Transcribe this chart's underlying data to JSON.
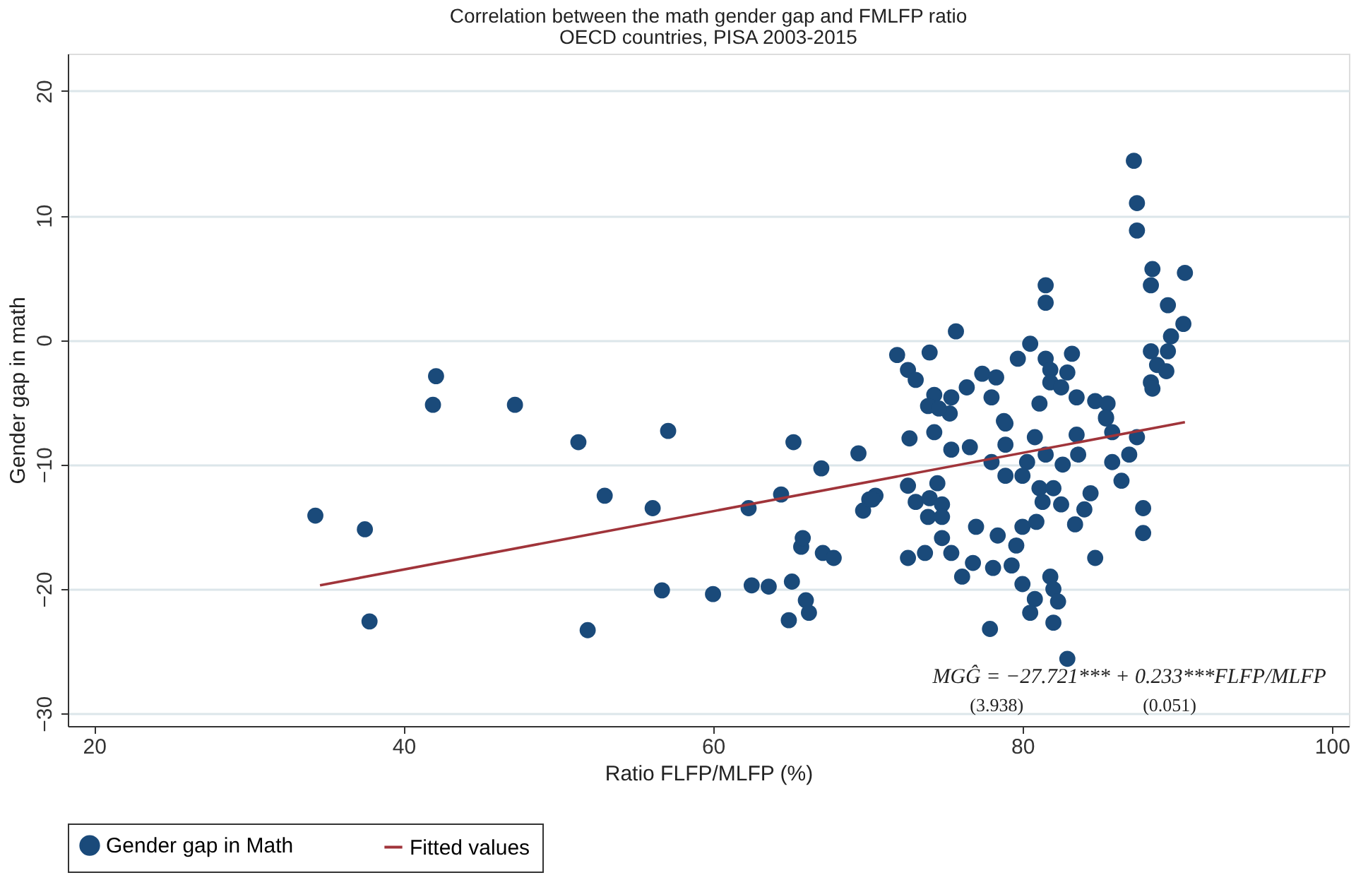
{
  "chart_data": {
    "type": "scatter",
    "title": "Correlation between the math gender gap and FMLFP ratio",
    "subtitle": "OECD countries, PISA 2003-2015",
    "xlabel": "Ratio FLFP/MLFP (%)",
    "ylabel": "Gender gap in math",
    "xlim": [
      18.3,
      101.1
    ],
    "xticks": [
      20,
      40,
      60,
      80,
      100
    ],
    "ylim": [
      -31,
      23
    ],
    "yticks": [
      -30,
      -20,
      -10,
      0,
      10,
      20
    ],
    "grid": "y",
    "legend": "bottom",
    "marker": "circle",
    "series": [
      {
        "name": "Gender gap in Math",
        "color": "#1a4a7a",
        "x": [
          34.3,
          37.5,
          37.8,
          42.1,
          41.9,
          47.2,
          51.3,
          51.9,
          53.0,
          56.1,
          57.1,
          56.7,
          60.0,
          62.3,
          62.5,
          63.6,
          64.4,
          65.2,
          64.9,
          65.1,
          65.7,
          66.0,
          66.2,
          67.0,
          67.1,
          67.8,
          69.4,
          69.7,
          70.1,
          70.5,
          65.8,
          87.2,
          87.4,
          87.4,
          88.4,
          88.3,
          90.5,
          89.4,
          90.4,
          89.6,
          88.3,
          89.4,
          88.7,
          89.3,
          88.3,
          88.4,
          81.5,
          81.5,
          75.7,
          71.9,
          74.0,
          72.6,
          73.1,
          80.5,
          79.7,
          83.2,
          81.5,
          81.8,
          82.9,
          77.4,
          78.3,
          76.4,
          81.8,
          82.5,
          74.3,
          75.4,
          78.0,
          83.5,
          84.7,
          85.5,
          73.9,
          81.1,
          75.3,
          78.8,
          85.4,
          74.6,
          72.7,
          74.3,
          75.4,
          76.6,
          78.9,
          78.9,
          80.8,
          83.5,
          85.4,
          85.8,
          87.4,
          86.9,
          85.8,
          78.0,
          80.3,
          81.5,
          82.6,
          83.6,
          78.9,
          80.0,
          86.4,
          72.6,
          74.5,
          70.3,
          73.1,
          74.0,
          74.8,
          81.1,
          82.0,
          84.4,
          81.3,
          82.5,
          84.0,
          73.9,
          74.8,
          87.8,
          83.4,
          77.0,
          80.0,
          80.9,
          78.4,
          87.8,
          74.8,
          79.6,
          75.4,
          73.7,
          72.6,
          84.7,
          76.8,
          78.1,
          79.3,
          76.1,
          80.0,
          81.8,
          82.0,
          80.8,
          82.3,
          80.5,
          82.0,
          77.9,
          82.9
        ],
        "values": [
          -14.1,
          -15.2,
          -22.6,
          -2.9,
          -5.2,
          -5.2,
          -8.2,
          -23.3,
          -12.5,
          -13.5,
          -7.3,
          -20.1,
          -20.4,
          -13.5,
          -19.7,
          -19.8,
          -12.4,
          -8.2,
          -22.5,
          -19.4,
          -16.6,
          -20.9,
          -21.9,
          -10.3,
          -17.1,
          -17.5,
          -9.1,
          -13.7,
          -12.8,
          -12.5,
          -15.9,
          14.4,
          11.0,
          8.8,
          5.7,
          4.4,
          5.4,
          2.8,
          1.3,
          0.3,
          -0.9,
          -0.9,
          -2.0,
          -2.5,
          -3.4,
          -3.9,
          4.4,
          3.0,
          0.7,
          -1.2,
          -1.0,
          -2.4,
          -3.2,
          -0.3,
          -1.5,
          -1.1,
          -1.5,
          -2.4,
          -2.6,
          -2.7,
          -3.0,
          -3.8,
          -3.4,
          -3.8,
          -4.4,
          -4.6,
          -4.6,
          -4.6,
          -4.9,
          -5.1,
          -5.3,
          -5.1,
          -5.9,
          -6.5,
          -6.2,
          -5.5,
          -7.9,
          -7.4,
          -8.8,
          -8.6,
          -6.7,
          -8.4,
          -7.8,
          -7.6,
          -6.3,
          -7.4,
          -7.8,
          -9.2,
          -9.8,
          -9.8,
          -9.8,
          -9.2,
          -10.0,
          -9.2,
          -10.9,
          -10.9,
          -11.3,
          -11.7,
          -11.5,
          -12.8,
          -13.0,
          -12.7,
          -13.2,
          -11.9,
          -11.9,
          -12.3,
          -13.0,
          -13.2,
          -13.6,
          -14.2,
          -14.2,
          -13.5,
          -14.8,
          -15.0,
          -15.0,
          -14.6,
          -15.7,
          -15.5,
          -15.9,
          -16.5,
          -17.1,
          -17.1,
          -17.5,
          -17.5,
          -17.9,
          -18.3,
          -18.1,
          -19.0,
          -19.6,
          -19.0,
          -20.0,
          -20.8,
          -21.0,
          -21.9,
          -22.7,
          -23.2,
          -25.6
        ]
      },
      {
        "name": "Fitted values",
        "type": "line",
        "marker": "none",
        "color": "#a0343a",
        "x": [
          34.6,
          90.5
        ],
        "values": [
          -19.7,
          -6.6
        ]
      }
    ],
    "annotations": [
      "MGĜ = −27.721*** + 0.233***FLFP/MLFP",
      "(3.938)",
      "(0.051)"
    ]
  }
}
